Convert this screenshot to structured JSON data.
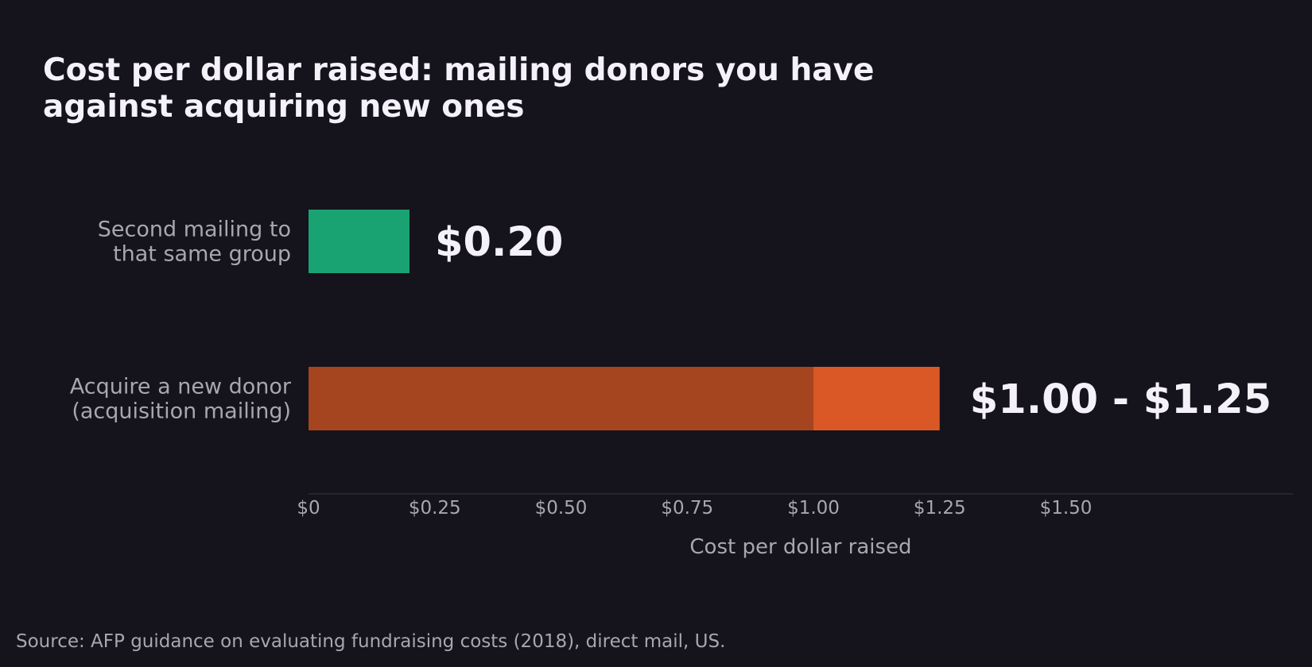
{
  "chart_data": {
    "type": "bar",
    "orientation": "horizontal",
    "title_lines": [
      "Cost per dollar raised: mailing donors you have",
      "against acquiring new ones"
    ],
    "categories": [
      {
        "label_lines": [
          "Second mailing to",
          "that same group"
        ],
        "value": 0.2,
        "value_label": "$0.20",
        "color": "#1aa372"
      },
      {
        "label_lines": [
          "Acquire a new donor",
          "(acquisition mailing)"
        ],
        "range": [
          1.0,
          1.25
        ],
        "value_label": "$1.00 - $1.25",
        "color": "#a5451f",
        "range_color": "#d95826"
      }
    ],
    "x_ticks": [
      {
        "value": 0,
        "label": "$0"
      },
      {
        "value": 0.25,
        "label": "$0.25"
      },
      {
        "value": 0.5,
        "label": "$0.50"
      },
      {
        "value": 0.75,
        "label": "$0.75"
      },
      {
        "value": 1.0,
        "label": "$1.00"
      },
      {
        "value": 1.25,
        "label": "$1.25"
      },
      {
        "value": 1.5,
        "label": "$1.50"
      }
    ],
    "xlabel": "Cost per dollar raised",
    "xlim": [
      0,
      1.95
    ],
    "grid": false,
    "source": "Source: AFP guidance on evaluating fundraising costs (2018), direct mail, US.",
    "colors": {
      "background": "#15131c",
      "text": "#f4f2f8",
      "muted": "#a9a6b2",
      "axis_line": "#3a3742"
    }
  }
}
